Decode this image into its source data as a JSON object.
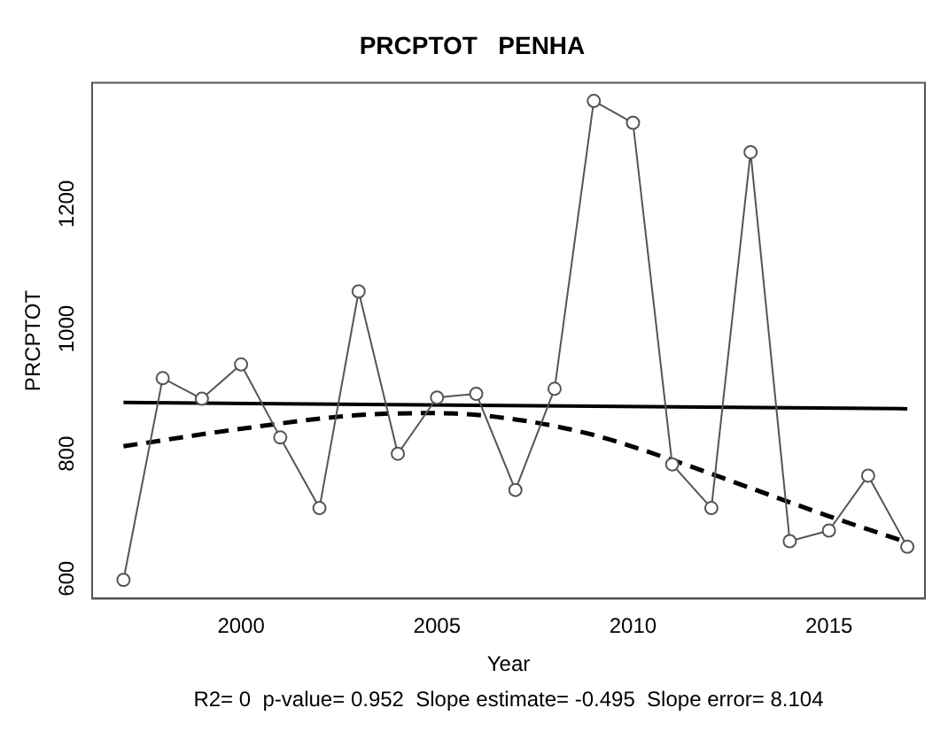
{
  "chart_data": {
    "type": "line",
    "title": "PRCPTOT   PENHA",
    "xlabel": "Year",
    "ylabel": "PRCPTOT",
    "annotations": [
      "R2= 0  p-value= 0.952  Slope estimate= -0.495  Slope error= 8.104"
    ],
    "xlim": [
      1996.2,
      2017.45
    ],
    "xticks": [
      2000,
      2005,
      2010,
      2015
    ],
    "ylim": [
      568,
      1394
    ],
    "yticks": [
      600,
      800,
      1000,
      1200
    ],
    "grid": false,
    "legend": false,
    "series": [
      {
        "x": [
          1997,
          1998,
          1999,
          2000,
          2001,
          2002,
          2003,
          2004,
          2005,
          2006,
          2007,
          2008,
          2009,
          2010,
          2011,
          2012,
          2013,
          2014,
          2015,
          2016,
          2017
        ],
        "values": [
          598,
          921,
          888,
          943,
          826,
          713,
          1060,
          800,
          890,
          896,
          742,
          904,
          1365,
          1330,
          783,
          713,
          1283,
          660,
          677,
          765,
          651
        ],
        "color": "#555555",
        "marker": "circle",
        "line_style": "solid"
      },
      {
        "x": [
          1997,
          2017
        ],
        "values": [
          882,
          872
        ],
        "color": "#000000",
        "marker": "none",
        "line_style": "solid"
      },
      {
        "x": [
          1997,
          2000,
          2003,
          2005,
          2007,
          2009,
          2011,
          2013,
          2015,
          2017
        ],
        "values": [
          812,
          840,
          862,
          865,
          855,
          830,
          790,
          745,
          700,
          658
        ],
        "color": "#000000",
        "marker": "none",
        "line_style": "dashed"
      }
    ]
  }
}
